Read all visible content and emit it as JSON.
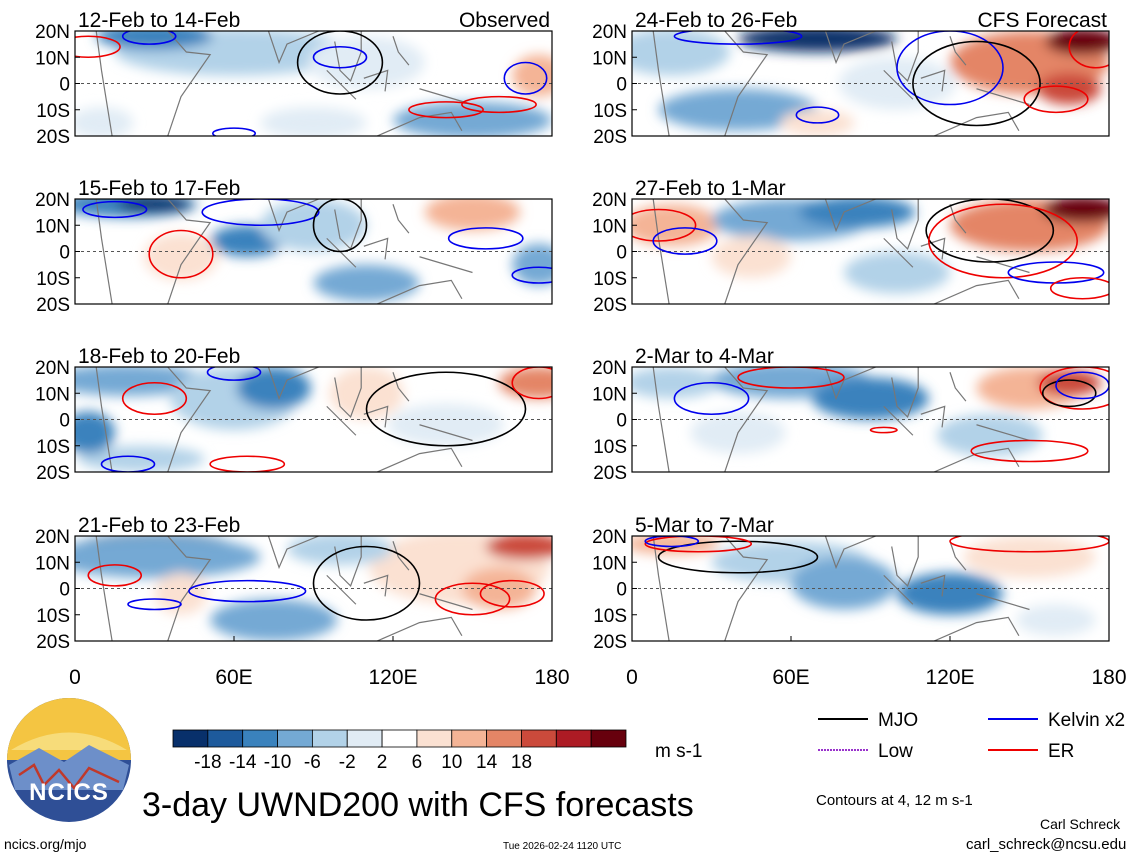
{
  "figure": {
    "title": "3-day UWND200 with CFS forecasts",
    "observed_label": "Observed",
    "forecast_label": "CFS Forecast",
    "units": "m s-1",
    "contour_note": "Contours at 4, 12 m s-1",
    "author": "Carl Schreck",
    "email": "carl_schreck@ncsu.edu",
    "url": "ncics.org/mjo",
    "timestamp": "Tue 2026-02-24 1120 UTC",
    "logo_text": "NCICS"
  },
  "chart_data": {
    "type": "heatmap",
    "variable": "200-hPa zonal wind anomaly (3-day mean)",
    "x_ticks": [
      "0",
      "60E",
      "120E",
      "180"
    ],
    "y_ticks": [
      "20N",
      "10N",
      "0",
      "10S",
      "20S"
    ],
    "xlim": [
      0,
      180
    ],
    "ylim": [
      -20,
      20
    ],
    "colorbar": {
      "levels": [
        "-18",
        "-14",
        "-10",
        "-6",
        "-2",
        "2",
        "6",
        "10",
        "14",
        "18"
      ],
      "colors": [
        "#08306b",
        "#1d5a9c",
        "#3a82bd",
        "#74a9d4",
        "#b2d2e8",
        "#e1ecf5",
        "#ffffff",
        "#fbe1d2",
        "#f4b496",
        "#e48566",
        "#cb4a3b",
        "#ad1b24",
        "#67000d"
      ]
    },
    "legend": [
      {
        "label": "MJO",
        "color": "#000000"
      },
      {
        "label": "Kelvin x2",
        "color": "#0000ee"
      },
      {
        "label": "Low",
        "color": "#9932cc"
      },
      {
        "label": "ER",
        "color": "#ee0000"
      }
    ],
    "panels": [
      {
        "label": "12-Feb to 14-Feb",
        "source": "Observed"
      },
      {
        "label": "15-Feb to 17-Feb",
        "source": "Observed"
      },
      {
        "label": "18-Feb to 20-Feb",
        "source": "Observed"
      },
      {
        "label": "21-Feb to 23-Feb",
        "source": "Observed"
      },
      {
        "label": "24-Feb to 26-Feb",
        "source": "CFS Forecast"
      },
      {
        "label": "27-Feb to 1-Mar",
        "source": "CFS Forecast"
      },
      {
        "label": "2-Mar to 4-Mar",
        "source": "CFS Forecast"
      },
      {
        "label": "5-Mar to 7-Mar",
        "source": "CFS Forecast"
      }
    ]
  }
}
